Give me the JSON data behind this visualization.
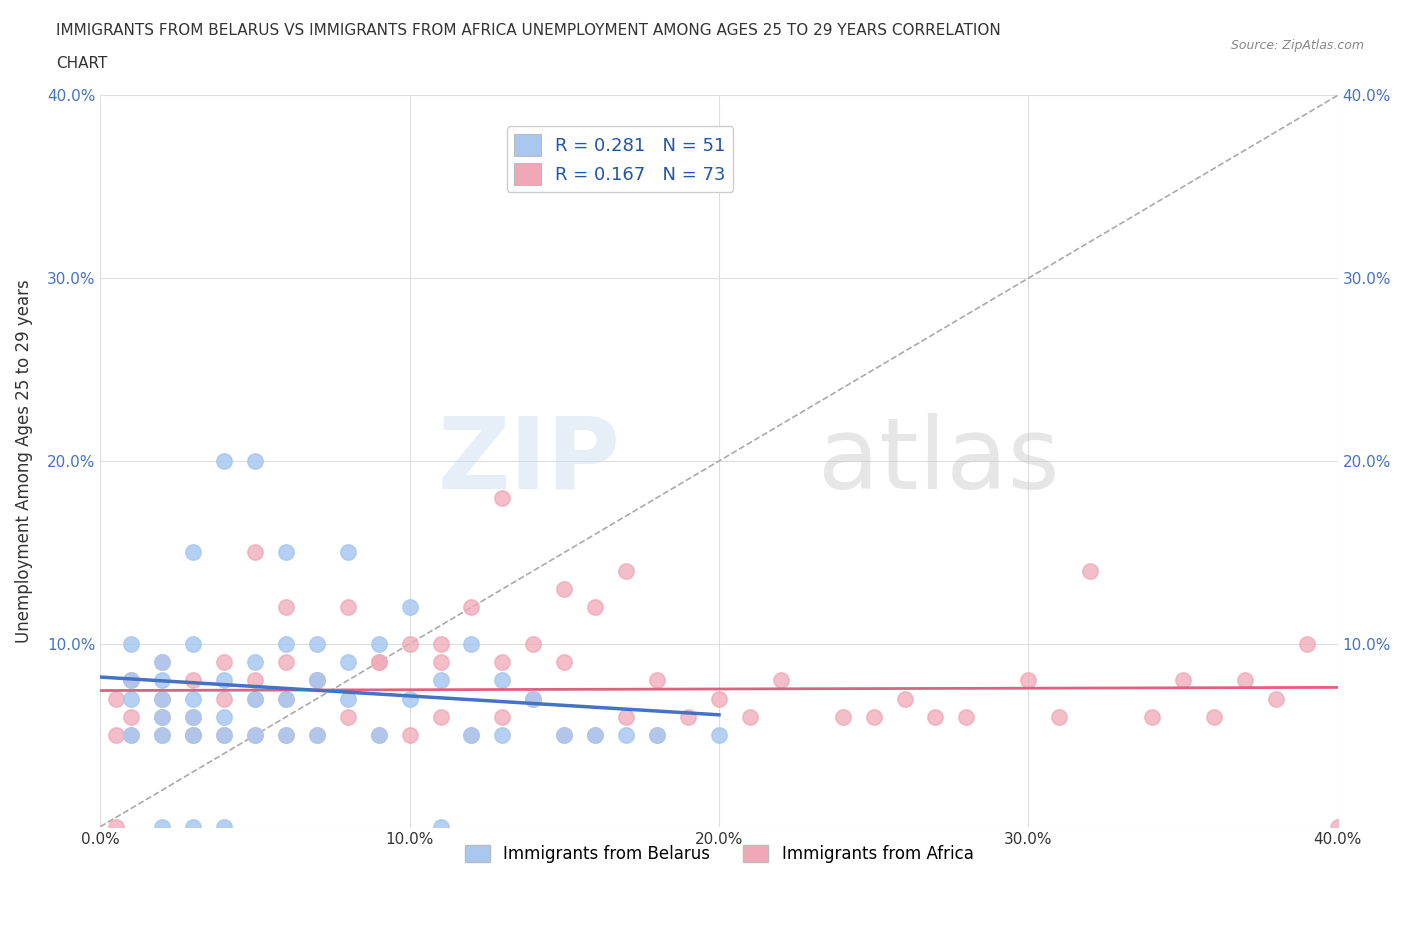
{
  "title_line1": "IMMIGRANTS FROM BELARUS VS IMMIGRANTS FROM AFRICA UNEMPLOYMENT AMONG AGES 25 TO 29 YEARS CORRELATION",
  "title_line2": "CHART",
  "source": "Source: ZipAtlas.com",
  "ylabel": "Unemployment Among Ages 25 to 29 years",
  "legend_label1": "Immigrants from Belarus",
  "legend_label2": "Immigrants from Africa",
  "r1": 0.281,
  "n1": 51,
  "r2": 0.167,
  "n2": 73,
  "xlim": [
    0.0,
    0.4
  ],
  "ylim": [
    0.0,
    0.4
  ],
  "xticks": [
    0.0,
    0.1,
    0.2,
    0.3,
    0.4
  ],
  "yticks": [
    0.0,
    0.1,
    0.2,
    0.3,
    0.4
  ],
  "xtick_labels": [
    "0.0%",
    "10.0%",
    "20.0%",
    "30.0%",
    "40.0%"
  ],
  "ytick_labels": [
    "",
    "10.0%",
    "20.0%",
    "30.0%",
    "40.0%"
  ],
  "color_belarus": "#a8c8f0",
  "color_africa": "#f0a8b8",
  "color_line_belarus": "#4472c4",
  "color_line_africa": "#e06080",
  "color_text": "#2255aa",
  "background_color": "#ffffff",
  "grid_color": "#dddddd",
  "belarus_x": [
    0.01,
    0.01,
    0.01,
    0.01,
    0.02,
    0.02,
    0.02,
    0.02,
    0.02,
    0.02,
    0.03,
    0.03,
    0.03,
    0.03,
    0.03,
    0.03,
    0.04,
    0.04,
    0.04,
    0.04,
    0.04,
    0.05,
    0.05,
    0.05,
    0.05,
    0.06,
    0.06,
    0.06,
    0.06,
    0.07,
    0.07,
    0.07,
    0.08,
    0.08,
    0.08,
    0.09,
    0.09,
    0.1,
    0.1,
    0.11,
    0.11,
    0.12,
    0.12,
    0.13,
    0.13,
    0.14,
    0.15,
    0.16,
    0.17,
    0.18,
    0.2
  ],
  "belarus_y": [
    0.05,
    0.07,
    0.08,
    0.1,
    0.0,
    0.05,
    0.06,
    0.07,
    0.08,
    0.09,
    0.0,
    0.05,
    0.06,
    0.07,
    0.1,
    0.15,
    0.0,
    0.05,
    0.06,
    0.08,
    0.2,
    0.05,
    0.07,
    0.09,
    0.2,
    0.05,
    0.07,
    0.1,
    0.15,
    0.05,
    0.08,
    0.1,
    0.07,
    0.09,
    0.15,
    0.05,
    0.1,
    0.07,
    0.12,
    0.0,
    0.08,
    0.05,
    0.1,
    0.05,
    0.08,
    0.07,
    0.05,
    0.05,
    0.05,
    0.05,
    0.05
  ],
  "africa_x": [
    0.005,
    0.01,
    0.01,
    0.01,
    0.02,
    0.02,
    0.02,
    0.02,
    0.03,
    0.03,
    0.03,
    0.04,
    0.04,
    0.04,
    0.05,
    0.05,
    0.05,
    0.06,
    0.06,
    0.06,
    0.06,
    0.07,
    0.07,
    0.08,
    0.08,
    0.09,
    0.09,
    0.1,
    0.1,
    0.11,
    0.11,
    0.12,
    0.12,
    0.13,
    0.13,
    0.14,
    0.14,
    0.15,
    0.15,
    0.16,
    0.16,
    0.17,
    0.17,
    0.18,
    0.18,
    0.19,
    0.2,
    0.21,
    0.22,
    0.24,
    0.25,
    0.26,
    0.27,
    0.28,
    0.3,
    0.31,
    0.32,
    0.34,
    0.35,
    0.36,
    0.37,
    0.38,
    0.39,
    0.005,
    0.4,
    0.005,
    0.03,
    0.05,
    0.07,
    0.09,
    0.11,
    0.13,
    0.15
  ],
  "africa_y": [
    0.07,
    0.05,
    0.06,
    0.08,
    0.05,
    0.06,
    0.07,
    0.09,
    0.05,
    0.06,
    0.08,
    0.05,
    0.07,
    0.09,
    0.05,
    0.07,
    0.15,
    0.05,
    0.07,
    0.09,
    0.12,
    0.05,
    0.08,
    0.06,
    0.12,
    0.05,
    0.09,
    0.05,
    0.1,
    0.06,
    0.1,
    0.05,
    0.12,
    0.06,
    0.18,
    0.07,
    0.1,
    0.05,
    0.13,
    0.05,
    0.12,
    0.06,
    0.14,
    0.05,
    0.08,
    0.06,
    0.07,
    0.06,
    0.08,
    0.06,
    0.06,
    0.07,
    0.06,
    0.06,
    0.08,
    0.06,
    0.14,
    0.06,
    0.08,
    0.06,
    0.08,
    0.07,
    0.1,
    0.0,
    0.0,
    0.05,
    0.05,
    0.08,
    0.08,
    0.09,
    0.09,
    0.09,
    0.09
  ]
}
